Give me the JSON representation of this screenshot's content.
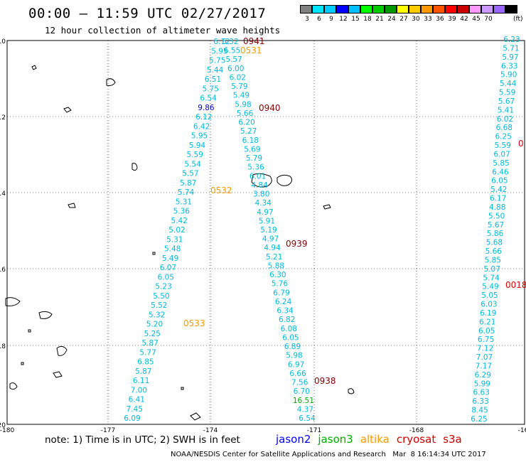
{
  "title": "00:00 – 11:59 UTC 02/27/2017",
  "subtitle": "12 hour collection of altimeter wave heights",
  "colorbar": {
    "colors": [
      "#808080",
      "#00e5ff",
      "#00ccff",
      "#0000ff",
      "#00bfff",
      "#00ff00",
      "#00cc00",
      "#009900",
      "#ffff00",
      "#ffcc00",
      "#ff9900",
      "#ff5500",
      "#ff0000",
      "#cc0000",
      "#ff99ff",
      "#cc99ff",
      "#9966ff",
      "#000000"
    ],
    "labels": [
      "3",
      "6",
      "9",
      "12",
      "15",
      "18",
      "21",
      "24",
      "27",
      "30",
      "33",
      "36",
      "39",
      "42",
      "45",
      "70"
    ],
    "unit": "(ft)"
  },
  "map": {
    "lat_labels": [
      "-10",
      "-12",
      "-14",
      "-16",
      "-18",
      "-20"
    ],
    "lon_labels": [
      "-180",
      "-177",
      "-174",
      "-171",
      "-168",
      "-16"
    ],
    "swh_color": "#00b8d8",
    "tracks": [
      {
        "name": "track-a-left",
        "values": [
          "6.12",
          "5.95",
          "5.75",
          "5.44",
          "6.51",
          "5.75",
          "6.54",
          "9.86",
          "6.12",
          "6.42",
          "5.95",
          "5.94",
          "5.59",
          "5.54",
          "5.57",
          "5.87",
          "5.74",
          "5.31",
          "5.36",
          "5.42",
          "5.02",
          "5.31",
          "5.48",
          "5.49",
          "6.07",
          "6.05",
          "5.23",
          "5.50",
          "5.52",
          "5.32",
          "5.20",
          "5.25",
          "5.87",
          "5.77",
          "6.85",
          "5.87",
          "6.11",
          "7.00",
          "6.41",
          "7.45",
          "6.09"
        ]
      },
      {
        "name": "track-b-right",
        "values": [
          "6.32",
          "6.55",
          "5.57",
          "6.00",
          "6.02",
          "5.79",
          "5.49",
          "5.98",
          "5.66",
          "6.20",
          "5.27",
          "6.18",
          "5.69",
          "5.79",
          "5.36",
          "6.01",
          "4.84",
          "3.80",
          "4.34",
          "4.97",
          "5.91",
          "5.19",
          "4.97",
          "4.94",
          "5.21",
          "5.88",
          "6.30",
          "5.76",
          "6.79",
          "6.24",
          "6.34",
          "6.82",
          "6.08",
          "6.05",
          "6.89",
          "5.98",
          "6.97",
          "6.66",
          "7.56",
          "6.70",
          "16.51",
          "4.37",
          "6.54"
        ]
      },
      {
        "name": "track-c-east",
        "values": [
          "6.23",
          "5.71",
          "5.97",
          "6.33",
          "5.90",
          "5.44",
          "5.59",
          "5.67",
          "5.41",
          "6.02",
          "6.68",
          "6.25",
          "5.59",
          "6.07",
          "5.85",
          "6.46",
          "6.05",
          "5.42",
          "6.17",
          "4.88",
          "5.50",
          "5.67",
          "5.86",
          "5.68",
          "5.66",
          "5.85",
          "5.07",
          "5.74",
          "5.49",
          "5.05",
          "6.03",
          "6.19",
          "6.21",
          "6.05",
          "6.75",
          "7.12",
          "7.07",
          "7.17",
          "6.29",
          "5.99",
          "6.63",
          "6.33",
          "8.45",
          "6.25"
        ]
      }
    ],
    "time_labels": [
      {
        "text": "0941",
        "color": "#800000"
      },
      {
        "text": "0531",
        "color": "#ff9900"
      },
      {
        "text": "0940",
        "color": "#800000"
      },
      {
        "text": "0532",
        "color": "#ff9900"
      },
      {
        "text": "0939",
        "color": "#800000"
      },
      {
        "text": "0533",
        "color": "#ff9900"
      },
      {
        "text": "0938",
        "color": "#800000"
      },
      {
        "text": "0018",
        "color": "#dd0000"
      },
      {
        "text": "0",
        "color": "#dd0000"
      }
    ]
  },
  "note": "note: 1) Time is in UTC; 2) SWH is in feet",
  "legend": [
    {
      "name": "jason2",
      "color": "#0000ff"
    },
    {
      "name": "jason3",
      "color": "#00aa00"
    },
    {
      "name": "altika",
      "color": "#ff9900"
    },
    {
      "name": "cryosat",
      "color": "#cc0000"
    },
    {
      "name": "s3a",
      "color": "#cc0000"
    }
  ],
  "credit": "NOAA/NESDIS Center for Satellite Applications and Research   Mar  8 16:14:34 UTC 2017"
}
